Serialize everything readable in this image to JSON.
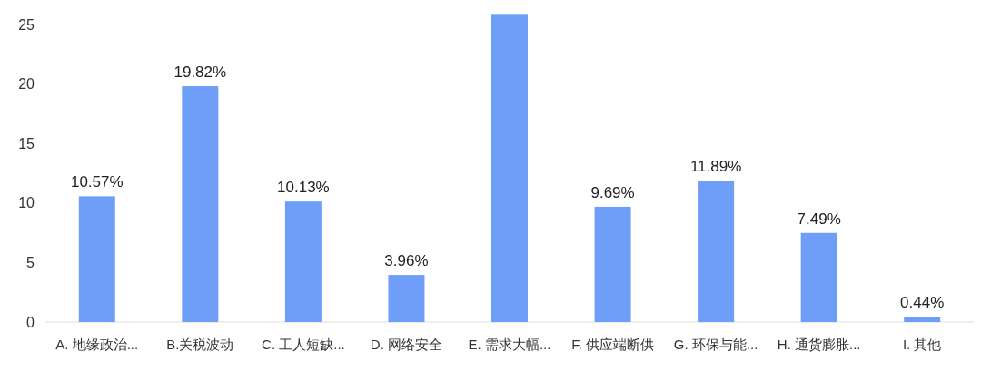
{
  "chart_data": {
    "type": "bar",
    "categories": [
      "A. 地缘政治...",
      "B.关税波动",
      "C. 工人短缺...",
      "D. 网络安全",
      "E. 需求大幅...",
      "F. 供应端断供",
      "G. 环保与能...",
      "H. 通货膨胀...",
      "I. 其他"
    ],
    "values": [
      10.57,
      19.82,
      10.13,
      3.96,
      25.9,
      9.69,
      11.89,
      7.49,
      0.44
    ],
    "value_labels": [
      "10.57%",
      "19.82%",
      "10.13%",
      "3.96%",
      null,
      "9.69%",
      "11.89%",
      "7.49%",
      "0.44%"
    ],
    "color": "#6f9ef8",
    "ylim": [
      0,
      26
    ],
    "yticks": [
      0,
      5,
      10,
      15,
      20,
      25
    ]
  }
}
